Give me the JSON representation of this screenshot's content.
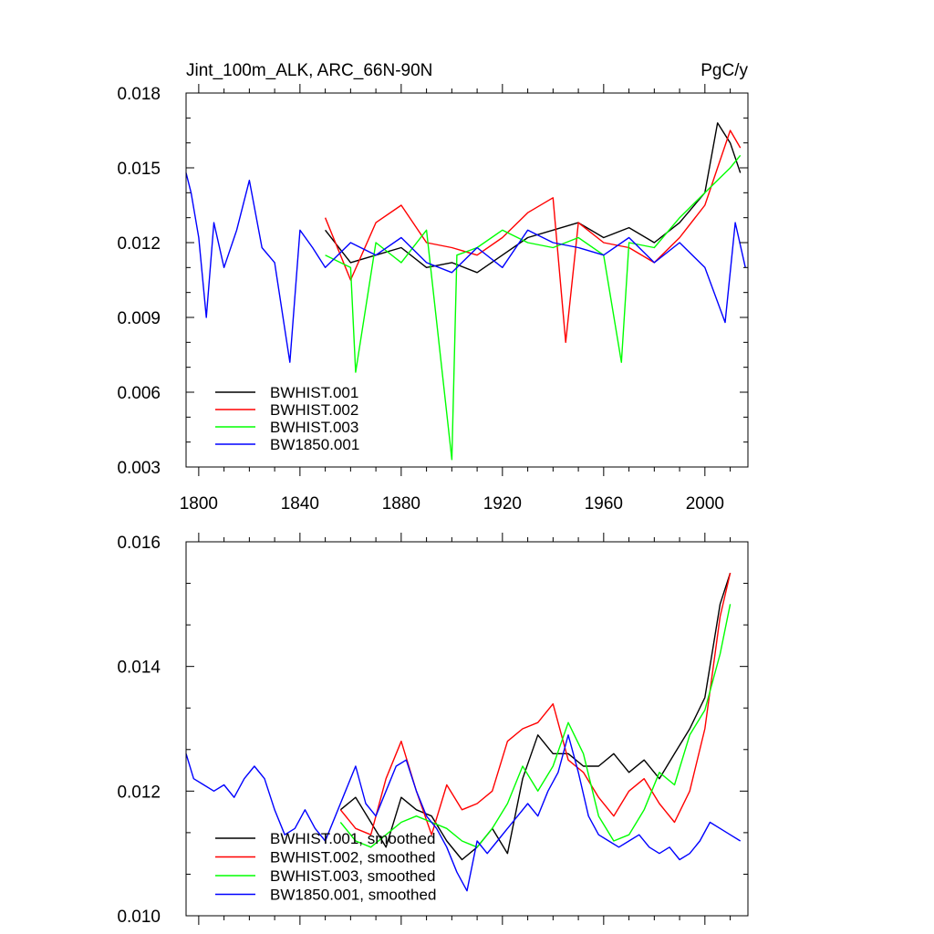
{
  "chart_data": [
    {
      "type": "line",
      "title": "Jint_100m_ALK, ARC_66N-90N",
      "units": "PgC/y",
      "xlim": [
        1795,
        2017
      ],
      "ylim": [
        0.003,
        0.018
      ],
      "xticks": [
        1800,
        1840,
        1880,
        1920,
        1960,
        2000
      ],
      "xtick_labels": [
        "1800",
        "1840",
        "1880",
        "1920",
        "1960",
        "2000"
      ],
      "yticks": [
        0.003,
        0.006,
        0.009,
        0.012,
        0.015,
        0.018
      ],
      "ytick_labels": [
        "0.003",
        "0.006",
        "0.009",
        "0.012",
        "0.015",
        "0.018"
      ],
      "legend": [
        "BWHIST.001",
        "BWHIST.002",
        "BWHIST.003",
        "BW1850.001"
      ],
      "series": [
        {
          "name": "BWHIST.001",
          "color": "#000000",
          "x": [
            1850,
            1860,
            1870,
            1880,
            1890,
            1900,
            1910,
            1920,
            1930,
            1940,
            1950,
            1960,
            1970,
            1980,
            1990,
            2000,
            2005,
            2010,
            2014
          ],
          "y": [
            0.0125,
            0.0112,
            0.0115,
            0.0118,
            0.011,
            0.0112,
            0.0108,
            0.0115,
            0.0122,
            0.0125,
            0.0128,
            0.0122,
            0.0126,
            0.012,
            0.0128,
            0.014,
            0.0168,
            0.016,
            0.0148
          ]
        },
        {
          "name": "BWHIST.002",
          "color": "#ff0000",
          "x": [
            1850,
            1860,
            1870,
            1880,
            1890,
            1900,
            1910,
            1920,
            1930,
            1940,
            1945,
            1950,
            1960,
            1970,
            1980,
            1990,
            2000,
            2005,
            2010,
            2014
          ],
          "y": [
            0.013,
            0.0105,
            0.0128,
            0.0135,
            0.012,
            0.0118,
            0.0115,
            0.0122,
            0.0132,
            0.0138,
            0.008,
            0.0128,
            0.012,
            0.0118,
            0.0112,
            0.0122,
            0.0135,
            0.015,
            0.0165,
            0.0158
          ]
        },
        {
          "name": "BWHIST.003",
          "color": "#00ff00",
          "x": [
            1850,
            1860,
            1862,
            1870,
            1880,
            1890,
            1900,
            1902,
            1910,
            1920,
            1930,
            1940,
            1950,
            1960,
            1967,
            1970,
            1980,
            1990,
            2000,
            2010,
            2014
          ],
          "y": [
            0.0115,
            0.011,
            0.0068,
            0.012,
            0.0112,
            0.0125,
            0.0033,
            0.0115,
            0.0118,
            0.0125,
            0.012,
            0.0118,
            0.0122,
            0.0115,
            0.0072,
            0.012,
            0.0118,
            0.013,
            0.014,
            0.015,
            0.0155
          ]
        },
        {
          "name": "BW1850.001",
          "color": "#0000ff",
          "x": [
            1795,
            1797,
            1800,
            1803,
            1806,
            1810,
            1815,
            1820,
            1825,
            1830,
            1836,
            1840,
            1845,
            1850,
            1860,
            1870,
            1880,
            1890,
            1900,
            1910,
            1920,
            1930,
            1940,
            1950,
            1960,
            1970,
            1980,
            1990,
            2000,
            2008,
            2012,
            2016
          ],
          "y": [
            0.0148,
            0.014,
            0.0122,
            0.009,
            0.0128,
            0.011,
            0.0125,
            0.0145,
            0.0118,
            0.0112,
            0.0072,
            0.0125,
            0.0118,
            0.011,
            0.012,
            0.0115,
            0.0122,
            0.0112,
            0.0108,
            0.0118,
            0.011,
            0.0125,
            0.012,
            0.0118,
            0.0115,
            0.0122,
            0.0112,
            0.012,
            0.011,
            0.0088,
            0.0128,
            0.011
          ]
        }
      ]
    },
    {
      "type": "line",
      "xlim": [
        1795,
        2017
      ],
      "ylim": [
        0.01,
        0.016
      ],
      "xticks": [
        1800,
        1840,
        1880,
        1920,
        1960,
        2000
      ],
      "yticks": [
        0.01,
        0.012,
        0.014,
        0.016
      ],
      "ytick_labels": [
        "0.010",
        "0.012",
        "0.014",
        "0.016"
      ],
      "legend": [
        "BWHIST.001, smoothed",
        "BWHIST.002, smoothed",
        "BWHIST.003, smoothed",
        "BW1850.001, smoothed"
      ],
      "series": [
        {
          "name": "BWHIST.001, smoothed",
          "color": "#000000",
          "x": [
            1856,
            1862,
            1868,
            1874,
            1880,
            1886,
            1892,
            1898,
            1904,
            1910,
            1916,
            1922,
            1928,
            1934,
            1940,
            1946,
            1952,
            1958,
            1964,
            1970,
            1976,
            1982,
            1988,
            1994,
            2000,
            2006,
            2010
          ],
          "y": [
            0.0117,
            0.0119,
            0.0115,
            0.0111,
            0.0119,
            0.0117,
            0.0116,
            0.0112,
            0.0109,
            0.0111,
            0.0114,
            0.011,
            0.0122,
            0.0129,
            0.0126,
            0.0126,
            0.0124,
            0.0124,
            0.0126,
            0.0123,
            0.0125,
            0.0122,
            0.0126,
            0.013,
            0.0135,
            0.015,
            0.0155
          ]
        },
        {
          "name": "BWHIST.002, smoothed",
          "color": "#ff0000",
          "x": [
            1856,
            1862,
            1868,
            1874,
            1880,
            1886,
            1892,
            1898,
            1904,
            1910,
            1916,
            1922,
            1928,
            1934,
            1940,
            1946,
            1952,
            1958,
            1964,
            1970,
            1976,
            1982,
            1988,
            1994,
            2000,
            2006,
            2010
          ],
          "y": [
            0.0117,
            0.0114,
            0.0113,
            0.0122,
            0.0128,
            0.012,
            0.0113,
            0.0121,
            0.0117,
            0.0118,
            0.012,
            0.0128,
            0.013,
            0.0131,
            0.0134,
            0.0125,
            0.0123,
            0.0119,
            0.0116,
            0.012,
            0.0122,
            0.0118,
            0.0115,
            0.012,
            0.013,
            0.0148,
            0.0155
          ]
        },
        {
          "name": "BWHIST.003, smoothed",
          "color": "#00ff00",
          "x": [
            1856,
            1862,
            1868,
            1874,
            1880,
            1886,
            1892,
            1898,
            1904,
            1910,
            1916,
            1922,
            1928,
            1934,
            1940,
            1946,
            1952,
            1958,
            1964,
            1970,
            1976,
            1982,
            1988,
            1994,
            2000,
            2006,
            2010
          ],
          "y": [
            0.0115,
            0.0112,
            0.0111,
            0.0113,
            0.0115,
            0.0116,
            0.0115,
            0.0114,
            0.0112,
            0.0111,
            0.0114,
            0.0118,
            0.0124,
            0.012,
            0.0124,
            0.0131,
            0.0126,
            0.0116,
            0.0112,
            0.0113,
            0.0117,
            0.0123,
            0.0121,
            0.0129,
            0.0133,
            0.0142,
            0.015
          ]
        },
        {
          "name": "BW1850.001, smoothed",
          "color": "#0000ff",
          "x": [
            1795,
            1798,
            1802,
            1806,
            1810,
            1814,
            1818,
            1822,
            1826,
            1830,
            1834,
            1838,
            1842,
            1846,
            1850,
            1854,
            1858,
            1862,
            1866,
            1870,
            1874,
            1878,
            1882,
            1886,
            1890,
            1894,
            1898,
            1902,
            1906,
            1910,
            1914,
            1918,
            1922,
            1926,
            1930,
            1934,
            1938,
            1942,
            1946,
            1950,
            1954,
            1958,
            1962,
            1966,
            1970,
            1974,
            1978,
            1982,
            1986,
            1990,
            1994,
            1998,
            2002,
            2006,
            2010,
            2014
          ],
          "y": [
            0.0126,
            0.0122,
            0.0121,
            0.012,
            0.0121,
            0.0119,
            0.0122,
            0.0124,
            0.0122,
            0.0117,
            0.0113,
            0.0114,
            0.0117,
            0.0114,
            0.0112,
            0.0116,
            0.012,
            0.0124,
            0.0118,
            0.0116,
            0.012,
            0.0124,
            0.0125,
            0.012,
            0.0116,
            0.0114,
            0.0111,
            0.0107,
            0.0104,
            0.0112,
            0.011,
            0.0112,
            0.0114,
            0.0116,
            0.0118,
            0.0116,
            0.012,
            0.0123,
            0.0129,
            0.0123,
            0.0116,
            0.0113,
            0.0112,
            0.0111,
            0.0112,
            0.0113,
            0.0111,
            0.011,
            0.0111,
            0.0109,
            0.011,
            0.0112,
            0.0115,
            0.0114,
            0.0113,
            0.0112
          ]
        }
      ]
    }
  ]
}
